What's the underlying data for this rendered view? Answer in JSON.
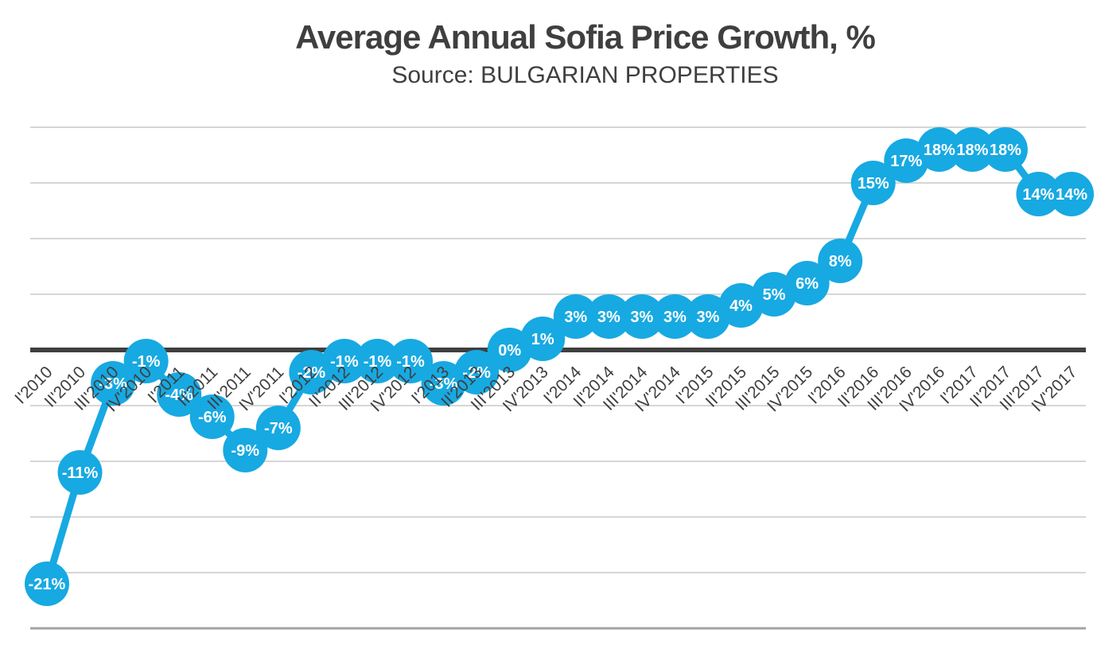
{
  "header": {
    "title": "Average Annual Sofia Price Growth, %",
    "subtitle": "Source: BULGARIAN PROPERTIES"
  },
  "chart_data": {
    "type": "line",
    "title": "Average Annual Sofia Price Growth, %",
    "subtitle": "Source: BULGARIAN PROPERTIES",
    "categories": [
      "I'2010",
      "II'2010",
      "III'2010",
      "IV'2010",
      "I'2011",
      "II'2011",
      "III'2011",
      "IV'2011",
      "I'2012",
      "II'2012",
      "III'2012",
      "IV'2012",
      "I'2013",
      "II'2013",
      "III'2013",
      "IV'2013",
      "I'2014",
      "II'2014",
      "III'2014",
      "IV'2014",
      "I'2015",
      "II'2015",
      "III'2015",
      "IV'2015",
      "I'2016",
      "II'2016",
      "III'2016",
      "IV'2016",
      "I'2017",
      "II'2017",
      "III'2017",
      "IV'2017"
    ],
    "values": [
      -21,
      -11,
      -3,
      -1,
      -4,
      -6,
      -9,
      -7,
      -2,
      -1,
      -1,
      -1,
      -3,
      -2,
      0,
      1,
      3,
      3,
      3,
      3,
      3,
      4,
      5,
      6,
      8,
      15,
      17,
      18,
      18,
      18,
      14,
      14
    ],
    "point_labels": [
      "-21%",
      "-11%",
      "-3%",
      "-1%",
      "-4%",
      "-6%",
      "-9%",
      "-7%",
      "-2%",
      "-1%",
      "-1%",
      "-1%",
      "-3%",
      "-2%",
      "0%",
      "1%",
      "3%",
      "3%",
      "3%",
      "3%",
      "3%",
      "4%",
      "5%",
      "6%",
      "8%",
      "15%",
      "17%",
      "18%",
      "18%",
      "18%",
      "14%",
      "14%"
    ],
    "xlabel": "",
    "ylabel": "",
    "ylim": [
      -25,
      20
    ],
    "grid_step_pct": 5,
    "gridline_values": [
      20,
      15,
      10,
      5,
      -5,
      -10,
      -15,
      -20
    ],
    "bottom_line_value": -25,
    "zero_line_value": 0,
    "legend": "none",
    "marker": "large-circle",
    "data_label_position": "inside-marker",
    "colors": {
      "series": "#17A9E2",
      "marker_label": "#FFFFFF",
      "gridline": "#D6D6D6",
      "gridline_bottom": "#A3A3A3",
      "zero_line": "#3F3F3F",
      "text": "#3F3F3F"
    }
  }
}
